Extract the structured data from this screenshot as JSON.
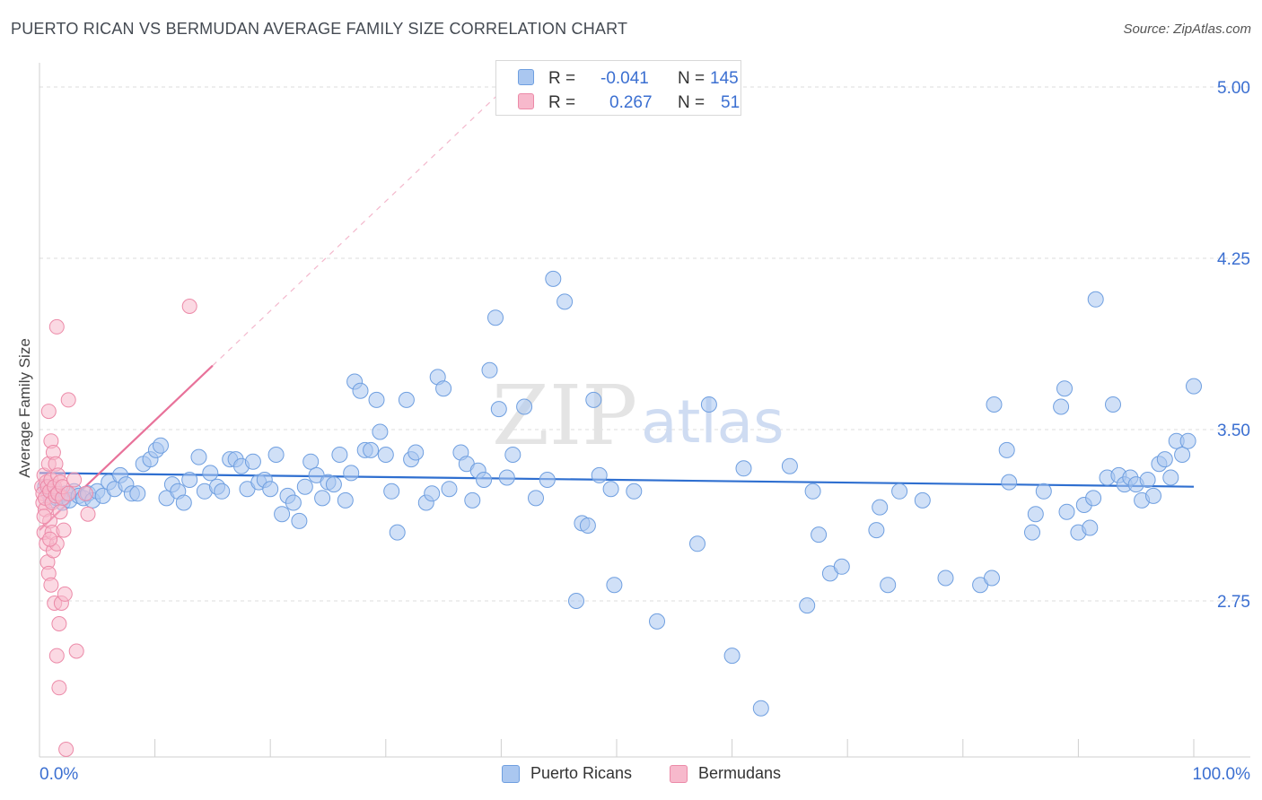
{
  "header": {
    "title": "PUERTO RICAN VS BERMUDAN AVERAGE FAMILY SIZE CORRELATION CHART",
    "source": "Source: ZipAtlas.com"
  },
  "watermark": {
    "zip": "ZIP",
    "atlas": "atlas"
  },
  "colors": {
    "blue_fill": "#aac7f0",
    "blue_stroke": "#6f9fe0",
    "blue_line": "#2f6fd0",
    "pink_fill": "#f7b9cc",
    "pink_stroke": "#ec8aa8",
    "pink_line": "#e8729a",
    "axis_text": "#3b6fd1",
    "grid": "#dcdcdc"
  },
  "legend_top": {
    "rows": [
      {
        "r_label": "R =",
        "r_value": "-0.041",
        "n_label": "N =",
        "n_value": "145"
      },
      {
        "r_label": "R =",
        "r_value": "0.267",
        "n_label": "N =",
        "n_value": "51"
      }
    ]
  },
  "legend_bottom": {
    "series": [
      "Puerto Ricans",
      "Bermudans"
    ]
  },
  "chart_data": {
    "type": "scatter",
    "title": "PUERTO RICAN VS BERMUDAN AVERAGE FAMILY SIZE CORRELATION CHART",
    "xlabel": "",
    "ylabel": "Average Family Size",
    "x_tick_labels": [
      "0.0%",
      "100.0%"
    ],
    "y_tick_labels": [
      "5.00",
      "4.25",
      "3.50",
      "2.75"
    ],
    "y_ticks": [
      5.0,
      4.25,
      3.5,
      2.75
    ],
    "xlim": [
      0,
      100
    ],
    "ylim": [
      2.0,
      5.1
    ],
    "grid": true,
    "legend_placement": "bottom",
    "series": [
      {
        "name": "Puerto Ricans",
        "stats": {
          "R": -0.041,
          "N": 145
        },
        "trend": {
          "x": [
            0,
            100
          ],
          "y": [
            3.31,
            3.25
          ]
        },
        "points": [
          [
            0.5,
            3.25
          ],
          [
            0.8,
            3.22
          ],
          [
            1.0,
            3.19
          ],
          [
            1.2,
            3.24
          ],
          [
            1.5,
            3.2
          ],
          [
            1.8,
            3.21
          ],
          [
            2.0,
            3.18
          ],
          [
            2.3,
            3.22
          ],
          [
            2.6,
            3.19
          ],
          [
            3.0,
            3.23
          ],
          [
            3.4,
            3.21
          ],
          [
            3.8,
            3.2
          ],
          [
            4.2,
            3.22
          ],
          [
            4.6,
            3.19
          ],
          [
            5.0,
            3.23
          ],
          [
            5.5,
            3.21
          ],
          [
            6.0,
            3.27
          ],
          [
            6.5,
            3.24
          ],
          [
            7.0,
            3.3
          ],
          [
            7.5,
            3.26
          ],
          [
            8.0,
            3.22
          ],
          [
            8.5,
            3.22
          ],
          [
            9.0,
            3.35
          ],
          [
            9.6,
            3.37
          ],
          [
            10.1,
            3.41
          ],
          [
            10.5,
            3.43
          ],
          [
            11.0,
            3.2
          ],
          [
            11.5,
            3.26
          ],
          [
            12.0,
            3.23
          ],
          [
            12.5,
            3.18
          ],
          [
            13.0,
            3.28
          ],
          [
            13.8,
            3.38
          ],
          [
            14.3,
            3.23
          ],
          [
            14.8,
            3.31
          ],
          [
            15.4,
            3.25
          ],
          [
            15.8,
            3.23
          ],
          [
            16.5,
            3.37
          ],
          [
            17.0,
            3.37
          ],
          [
            17.5,
            3.34
          ],
          [
            18.0,
            3.24
          ],
          [
            18.5,
            3.36
          ],
          [
            19.0,
            3.27
          ],
          [
            19.5,
            3.28
          ],
          [
            20.0,
            3.24
          ],
          [
            20.5,
            3.39
          ],
          [
            21.0,
            3.13
          ],
          [
            21.5,
            3.21
          ],
          [
            22.0,
            3.18
          ],
          [
            22.5,
            3.1
          ],
          [
            23.0,
            3.25
          ],
          [
            23.5,
            3.36
          ],
          [
            24.0,
            3.3
          ],
          [
            24.5,
            3.2
          ],
          [
            25.0,
            3.27
          ],
          [
            25.5,
            3.26
          ],
          [
            26.0,
            3.39
          ],
          [
            26.5,
            3.19
          ],
          [
            27.0,
            3.31
          ],
          [
            27.3,
            3.71
          ],
          [
            27.8,
            3.67
          ],
          [
            28.2,
            3.41
          ],
          [
            28.7,
            3.41
          ],
          [
            29.2,
            3.63
          ],
          [
            29.5,
            3.49
          ],
          [
            30.0,
            3.39
          ],
          [
            30.5,
            3.23
          ],
          [
            31.0,
            3.05
          ],
          [
            31.8,
            3.63
          ],
          [
            32.2,
            3.37
          ],
          [
            32.6,
            3.4
          ],
          [
            33.5,
            3.18
          ],
          [
            34.0,
            3.22
          ],
          [
            34.5,
            3.73
          ],
          [
            35.0,
            3.68
          ],
          [
            35.5,
            3.24
          ],
          [
            36.5,
            3.4
          ],
          [
            37.0,
            3.35
          ],
          [
            37.5,
            3.19
          ],
          [
            38.0,
            3.32
          ],
          [
            38.5,
            3.28
          ],
          [
            39.0,
            3.76
          ],
          [
            39.5,
            3.99
          ],
          [
            39.8,
            3.59
          ],
          [
            40.5,
            3.29
          ],
          [
            41.0,
            3.39
          ],
          [
            42.0,
            3.6
          ],
          [
            43.0,
            3.2
          ],
          [
            44.0,
            3.28
          ],
          [
            44.5,
            4.16
          ],
          [
            45.5,
            4.06
          ],
          [
            46.5,
            2.75
          ],
          [
            47.0,
            3.09
          ],
          [
            47.5,
            3.08
          ],
          [
            48.0,
            3.63
          ],
          [
            48.5,
            3.3
          ],
          [
            49.5,
            3.24
          ],
          [
            49.8,
            2.82
          ],
          [
            51.5,
            3.23
          ],
          [
            53.5,
            2.66
          ],
          [
            57.0,
            3.0
          ],
          [
            58.0,
            3.61
          ],
          [
            60.0,
            2.51
          ],
          [
            61.0,
            3.33
          ],
          [
            62.5,
            2.28
          ],
          [
            65.0,
            3.34
          ],
          [
            66.5,
            2.73
          ],
          [
            67.0,
            3.23
          ],
          [
            67.5,
            3.04
          ],
          [
            68.5,
            2.87
          ],
          [
            69.5,
            2.9
          ],
          [
            72.5,
            3.06
          ],
          [
            72.8,
            3.16
          ],
          [
            73.5,
            2.82
          ],
          [
            74.5,
            3.23
          ],
          [
            76.5,
            3.19
          ],
          [
            78.5,
            2.85
          ],
          [
            81.5,
            2.82
          ],
          [
            82.5,
            2.85
          ],
          [
            82.7,
            3.61
          ],
          [
            83.8,
            3.41
          ],
          [
            84.0,
            3.27
          ],
          [
            86.0,
            3.05
          ],
          [
            86.3,
            3.13
          ],
          [
            87.0,
            3.23
          ],
          [
            88.5,
            3.6
          ],
          [
            88.8,
            3.68
          ],
          [
            89.0,
            3.14
          ],
          [
            90.0,
            3.05
          ],
          [
            90.5,
            3.17
          ],
          [
            91.0,
            3.07
          ],
          [
            91.3,
            3.2
          ],
          [
            91.5,
            4.07
          ],
          [
            92.5,
            3.29
          ],
          [
            93.0,
            3.61
          ],
          [
            93.5,
            3.3
          ],
          [
            94.0,
            3.26
          ],
          [
            94.5,
            3.29
          ],
          [
            95.0,
            3.26
          ],
          [
            95.5,
            3.19
          ],
          [
            96.0,
            3.28
          ],
          [
            96.5,
            3.21
          ],
          [
            97.0,
            3.35
          ],
          [
            97.5,
            3.37
          ],
          [
            98.0,
            3.29
          ],
          [
            98.5,
            3.45
          ],
          [
            99.0,
            3.39
          ],
          [
            99.5,
            3.45
          ],
          [
            100.0,
            3.69
          ]
        ]
      },
      {
        "name": "Bermudans",
        "stats": {
          "R": 0.267,
          "N": 51
        },
        "trend": {
          "x": [
            0,
            15
          ],
          "y": [
            3.06,
            3.78
          ]
        },
        "points": [
          [
            0.2,
            3.25
          ],
          [
            0.3,
            3.22
          ],
          [
            0.3,
            3.18
          ],
          [
            0.4,
            3.3
          ],
          [
            0.4,
            3.05
          ],
          [
            0.5,
            3.15
          ],
          [
            0.5,
            3.2
          ],
          [
            0.6,
            3.27
          ],
          [
            0.6,
            3.0
          ],
          [
            0.7,
            3.25
          ],
          [
            0.7,
            2.92
          ],
          [
            0.8,
            3.35
          ],
          [
            0.8,
            3.58
          ],
          [
            0.8,
            2.87
          ],
          [
            0.9,
            3.23
          ],
          [
            0.9,
            3.1
          ],
          [
            1.0,
            3.45
          ],
          [
            1.0,
            2.82
          ],
          [
            1.0,
            3.28
          ],
          [
            1.1,
            3.05
          ],
          [
            1.1,
            3.18
          ],
          [
            1.2,
            3.4
          ],
          [
            1.2,
            2.97
          ],
          [
            1.3,
            3.25
          ],
          [
            1.3,
            2.74
          ],
          [
            1.4,
            3.35
          ],
          [
            1.4,
            3.21
          ],
          [
            1.5,
            3.95
          ],
          [
            1.5,
            3.0
          ],
          [
            1.5,
            2.51
          ],
          [
            1.6,
            3.3
          ],
          [
            1.6,
            3.22
          ],
          [
            1.7,
            2.65
          ],
          [
            1.7,
            2.37
          ],
          [
            1.8,
            3.27
          ],
          [
            1.8,
            3.14
          ],
          [
            1.9,
            2.74
          ],
          [
            2.0,
            3.2
          ],
          [
            2.0,
            3.25
          ],
          [
            2.1,
            3.06
          ],
          [
            2.2,
            2.78
          ],
          [
            2.3,
            2.1
          ],
          [
            2.5,
            3.22
          ],
          [
            2.5,
            3.63
          ],
          [
            3.0,
            3.28
          ],
          [
            3.2,
            2.53
          ],
          [
            4.0,
            3.22
          ],
          [
            4.2,
            3.13
          ],
          [
            13.0,
            4.04
          ],
          [
            0.4,
            3.12
          ],
          [
            0.9,
            3.02
          ]
        ]
      }
    ]
  }
}
